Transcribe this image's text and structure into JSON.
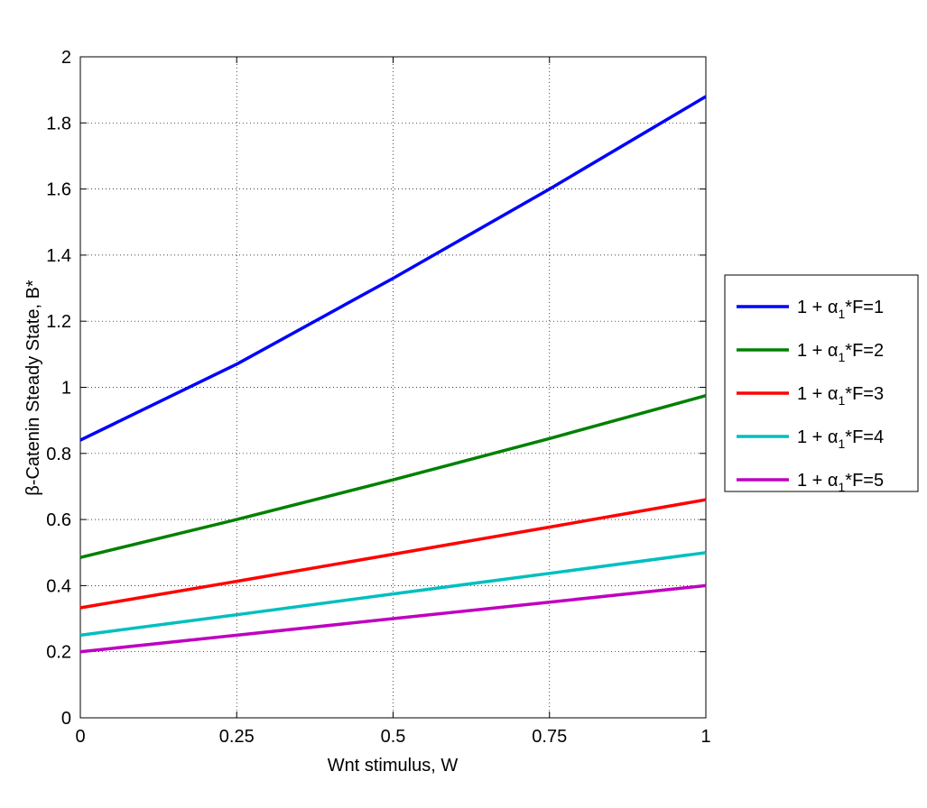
{
  "chart_data": {
    "type": "line",
    "title": "",
    "xlabel": "Wnt stimulus, W",
    "ylabel_parts": {
      "greek": "β",
      "rest": "-Catenin Steady State, B*"
    },
    "xlim": [
      0,
      1
    ],
    "ylim": [
      0,
      2
    ],
    "xticks": [
      0,
      0.25,
      0.5,
      0.75,
      1
    ],
    "xtick_labels": [
      "0",
      "0.25",
      "0.5",
      "0.75",
      "1"
    ],
    "yticks": [
      0,
      0.2,
      0.4,
      0.6,
      0.8,
      1,
      1.2,
      1.4,
      1.6,
      1.8,
      2
    ],
    "ytick_labels": [
      "0",
      "0.2",
      "0.4",
      "0.6",
      "0.8",
      "1",
      "1.2",
      "1.4",
      "1.6",
      "1.8",
      "2"
    ],
    "grid": true,
    "legend_position": "outside-right",
    "series": [
      {
        "name": "1 + α1*F=1",
        "label_prefix": "1 + ",
        "label_greek": "α",
        "label_sub": "1",
        "label_suffix": "*F=1",
        "color": "#0000ff",
        "x": [
          0,
          0.25,
          0.5,
          0.75,
          1
        ],
        "values": [
          0.84,
          1.07,
          1.33,
          1.6,
          1.88
        ]
      },
      {
        "name": "1 + α1*F=2",
        "label_prefix": "1 + ",
        "label_greek": "α",
        "label_sub": "1",
        "label_suffix": "*F=2",
        "color": "#008000",
        "x": [
          0,
          0.25,
          0.5,
          0.75,
          1
        ],
        "values": [
          0.485,
          0.6,
          0.72,
          0.845,
          0.975
        ]
      },
      {
        "name": "1 + α1*F=3",
        "label_prefix": "1 + ",
        "label_greek": "α",
        "label_sub": "1",
        "label_suffix": "*F=3",
        "color": "#ff0000",
        "x": [
          0,
          0.25,
          0.5,
          0.75,
          1
        ],
        "values": [
          0.333,
          0.413,
          0.495,
          0.577,
          0.66
        ]
      },
      {
        "name": "1 + α1*F=4",
        "label_prefix": "1 + ",
        "label_greek": "α",
        "label_sub": "1",
        "label_suffix": "*F=4",
        "color": "#00bfbf",
        "x": [
          0,
          0.25,
          0.5,
          0.75,
          1
        ],
        "values": [
          0.25,
          0.312,
          0.375,
          0.437,
          0.5
        ]
      },
      {
        "name": "1 + α1*F=5",
        "label_prefix": "1 + ",
        "label_greek": "α",
        "label_sub": "1",
        "label_suffix": "*F=5",
        "color": "#bf00bf",
        "x": [
          0,
          0.25,
          0.5,
          0.75,
          1
        ],
        "values": [
          0.2,
          0.25,
          0.3,
          0.35,
          0.4
        ]
      }
    ]
  }
}
